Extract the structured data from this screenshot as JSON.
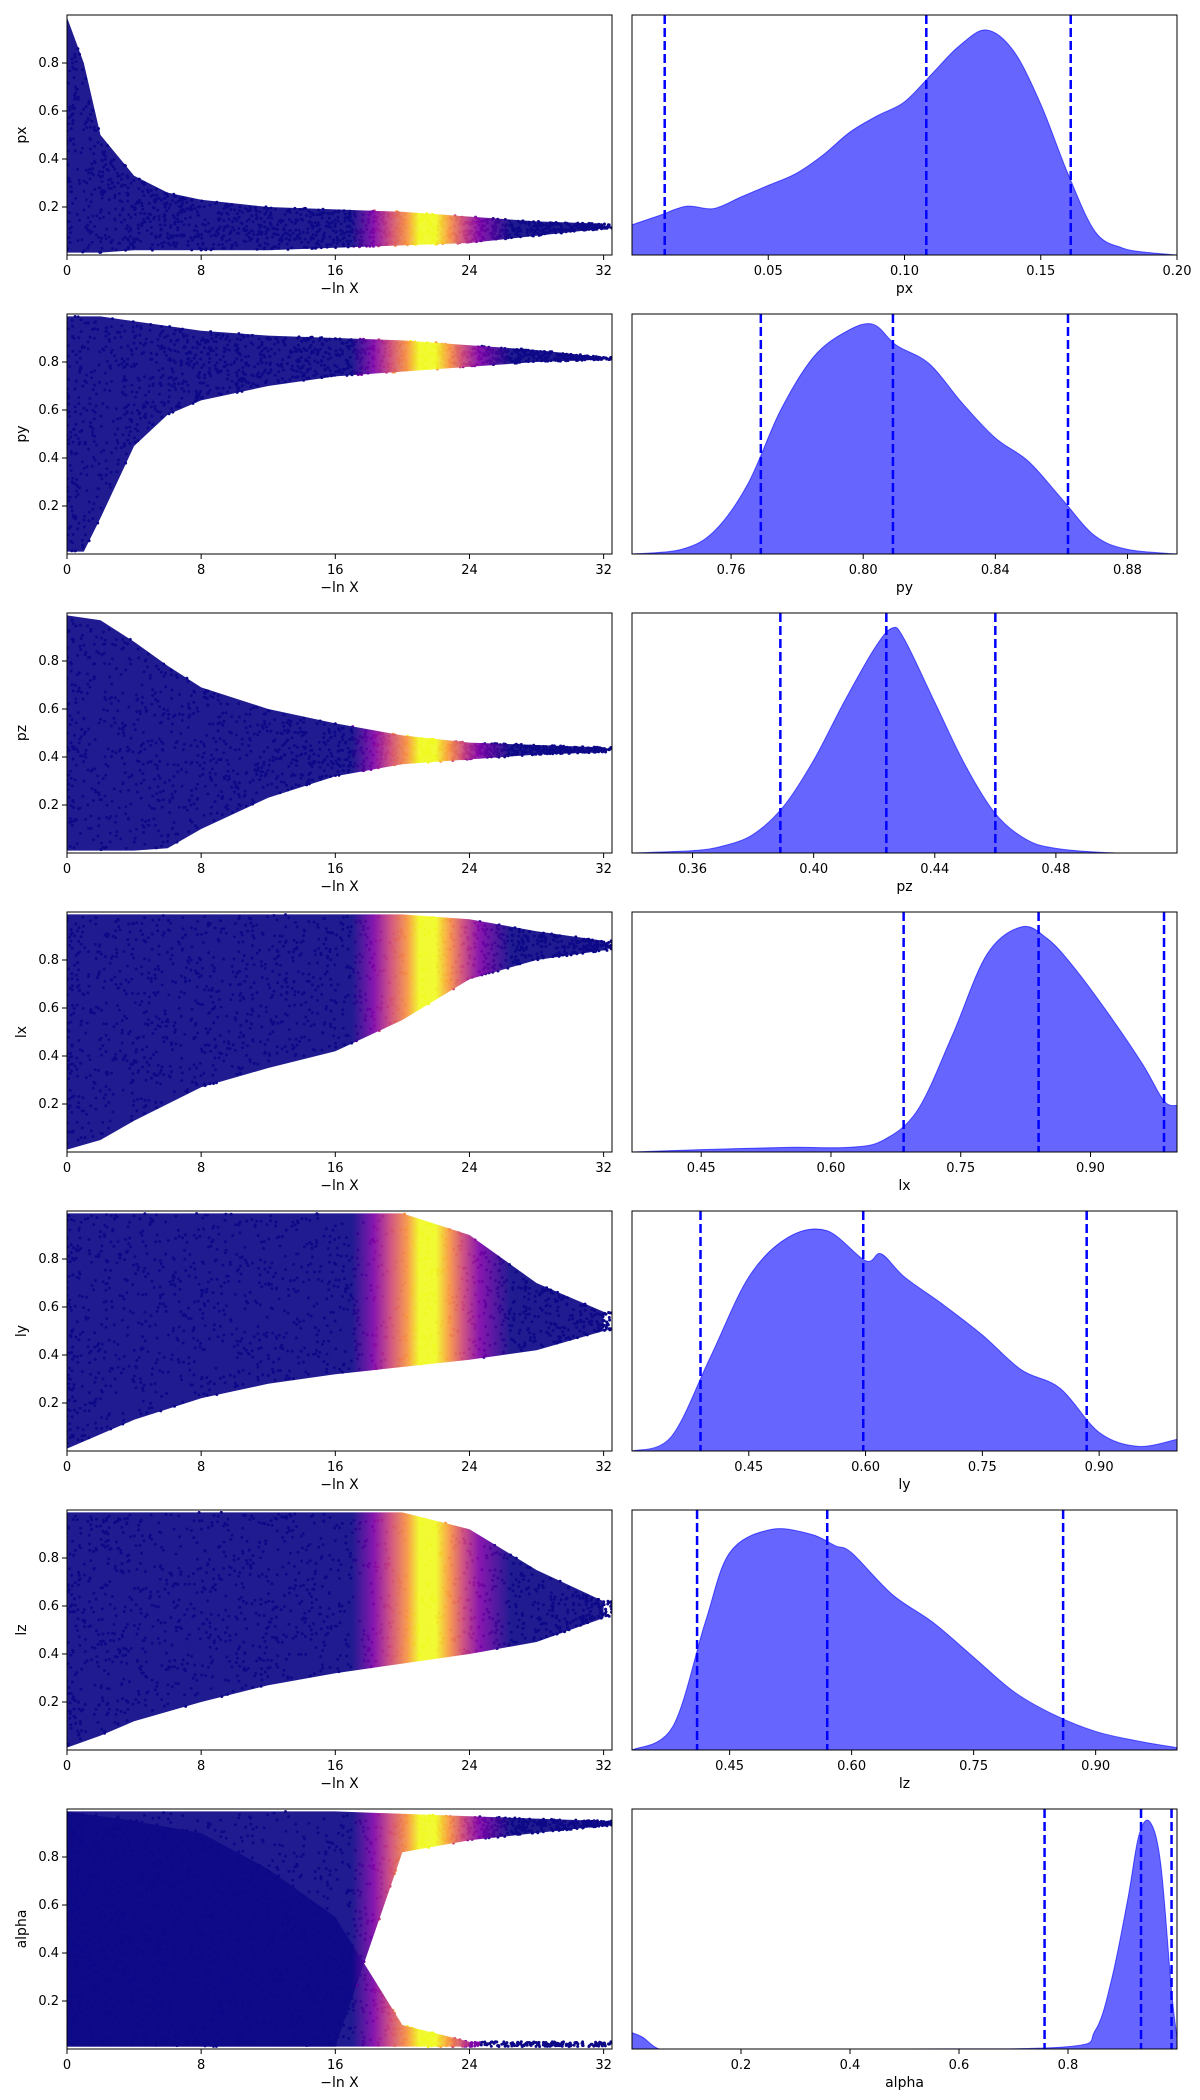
{
  "chart_data": [
    {
      "type": "scatter",
      "panel": "trace",
      "param": "px",
      "xlabel": "−ln X",
      "ylabel": "px",
      "xlim": [
        0,
        32.5
      ],
      "ylim": [
        0,
        1
      ],
      "xticks": [
        0,
        8,
        16,
        24,
        32
      ],
      "xtick_labels": [
        "0",
        "8",
        "16",
        "24",
        "32"
      ],
      "yticks": [
        0.2,
        0.4,
        0.6,
        0.8
      ],
      "ytick_labels": [
        "0.2",
        "0.4",
        "0.6",
        "0.8"
      ],
      "colormap": "plasma",
      "envelope": {
        "x": [
          0,
          1,
          2,
          4,
          6,
          8,
          12,
          16,
          20,
          24,
          28,
          32
        ],
        "upper": [
          0.99,
          0.8,
          0.5,
          0.33,
          0.26,
          0.23,
          0.2,
          0.19,
          0.18,
          0.16,
          0.14,
          0.13
        ],
        "lower": [
          0.01,
          0.01,
          0.01,
          0.02,
          0.02,
          0.02,
          0.02,
          0.03,
          0.04,
          0.05,
          0.08,
          0.11
        ]
      }
    },
    {
      "type": "area",
      "panel": "marginal",
      "param": "px",
      "xlabel": "px",
      "xlim": [
        0,
        0.2
      ],
      "xticks": [
        0.05,
        0.1,
        0.15,
        0.2
      ],
      "xtick_labels": [
        "0.05",
        "0.10",
        "0.15",
        "0.20"
      ],
      "quantile_lines": [
        0.012,
        0.108,
        0.161
      ],
      "color": "#0000ff",
      "density": {
        "x": [
          0,
          0.01,
          0.02,
          0.03,
          0.04,
          0.05,
          0.06,
          0.07,
          0.08,
          0.09,
          0.1,
          0.11,
          0.12,
          0.13,
          0.14,
          0.15,
          0.16,
          0.17,
          0.18,
          0.19,
          0.2
        ],
        "y": [
          0.13,
          0.17,
          0.21,
          0.2,
          0.25,
          0.3,
          0.35,
          0.43,
          0.53,
          0.6,
          0.66,
          0.78,
          0.9,
          0.97,
          0.88,
          0.65,
          0.35,
          0.1,
          0.03,
          0.01,
          0.0
        ]
      }
    },
    {
      "type": "scatter",
      "panel": "trace",
      "param": "py",
      "xlabel": "−ln X",
      "ylabel": "py",
      "xlim": [
        0,
        32.5
      ],
      "ylim": [
        0,
        1
      ],
      "xticks": [
        0,
        8,
        16,
        24,
        32
      ],
      "xtick_labels": [
        "0",
        "8",
        "16",
        "24",
        "32"
      ],
      "yticks": [
        0.2,
        0.4,
        0.6,
        0.8
      ],
      "ytick_labels": [
        "0.2",
        "0.4",
        "0.6",
        "0.8"
      ],
      "colormap": "plasma",
      "envelope": {
        "x": [
          0,
          1,
          2,
          4,
          6,
          8,
          12,
          16,
          20,
          24,
          28,
          32
        ],
        "upper": [
          0.99,
          0.99,
          0.99,
          0.97,
          0.95,
          0.93,
          0.91,
          0.9,
          0.89,
          0.87,
          0.85,
          0.82
        ],
        "lower": [
          0.01,
          0.01,
          0.15,
          0.45,
          0.58,
          0.64,
          0.7,
          0.74,
          0.76,
          0.78,
          0.8,
          0.81
        ]
      }
    },
    {
      "type": "area",
      "panel": "marginal",
      "param": "py",
      "xlabel": "py",
      "xlim": [
        0.73,
        0.895
      ],
      "xticks": [
        0.76,
        0.8,
        0.84,
        0.88
      ],
      "xtick_labels": [
        "0.76",
        "0.80",
        "0.84",
        "0.88"
      ],
      "quantile_lines": [
        0.769,
        0.809,
        0.862
      ],
      "color": "#0000ff",
      "density": {
        "x": [
          0.73,
          0.745,
          0.755,
          0.765,
          0.775,
          0.785,
          0.795,
          0.803,
          0.81,
          0.82,
          0.83,
          0.84,
          0.85,
          0.86,
          0.87,
          0.88,
          0.895
        ],
        "y": [
          0.0,
          0.02,
          0.1,
          0.3,
          0.62,
          0.85,
          0.96,
          0.99,
          0.9,
          0.82,
          0.65,
          0.5,
          0.4,
          0.24,
          0.08,
          0.02,
          0.0
        ]
      }
    },
    {
      "type": "scatter",
      "panel": "trace",
      "param": "pz",
      "xlabel": "−ln X",
      "ylabel": "pz",
      "xlim": [
        0,
        32.5
      ],
      "ylim": [
        0,
        1
      ],
      "xticks": [
        0,
        8,
        16,
        24,
        32
      ],
      "xtick_labels": [
        "0",
        "8",
        "16",
        "24",
        "32"
      ],
      "yticks": [
        0.2,
        0.4,
        0.6,
        0.8
      ],
      "ytick_labels": [
        "0.2",
        "0.4",
        "0.6",
        "0.8"
      ],
      "colormap": "plasma",
      "envelope": {
        "x": [
          0,
          2,
          4,
          6,
          8,
          12,
          16,
          20,
          24,
          28,
          32
        ],
        "upper": [
          0.99,
          0.97,
          0.88,
          0.78,
          0.69,
          0.6,
          0.54,
          0.49,
          0.46,
          0.45,
          0.44
        ],
        "lower": [
          0.01,
          0.01,
          0.01,
          0.02,
          0.1,
          0.23,
          0.32,
          0.37,
          0.39,
          0.41,
          0.42
        ]
      }
    },
    {
      "type": "area",
      "panel": "marginal",
      "param": "pz",
      "xlabel": "pz",
      "xlim": [
        0.34,
        0.52
      ],
      "xticks": [
        0.36,
        0.4,
        0.44,
        0.48
      ],
      "xtick_labels": [
        "0.36",
        "0.40",
        "0.44",
        "0.48"
      ],
      "quantile_lines": [
        0.389,
        0.424,
        0.46
      ],
      "color": "#0000ff",
      "density": {
        "x": [
          0.34,
          0.36,
          0.37,
          0.38,
          0.39,
          0.4,
          0.41,
          0.42,
          0.426,
          0.43,
          0.44,
          0.45,
          0.46,
          0.47,
          0.48,
          0.5,
          0.52
        ],
        "y": [
          0.0,
          0.01,
          0.03,
          0.08,
          0.2,
          0.4,
          0.65,
          0.88,
          0.97,
          0.92,
          0.65,
          0.38,
          0.17,
          0.06,
          0.02,
          0.0,
          0.0
        ]
      }
    },
    {
      "type": "scatter",
      "panel": "trace",
      "param": "lx",
      "xlabel": "−ln X",
      "ylabel": "lx",
      "xlim": [
        0,
        32.5
      ],
      "ylim": [
        0,
        1
      ],
      "xticks": [
        0,
        8,
        16,
        24,
        32
      ],
      "xtick_labels": [
        "0",
        "8",
        "16",
        "24",
        "32"
      ],
      "yticks": [
        0.2,
        0.4,
        0.6,
        0.8
      ],
      "ytick_labels": [
        "0.2",
        "0.4",
        "0.6",
        "0.8"
      ],
      "colormap": "plasma",
      "envelope": {
        "x": [
          0,
          2,
          4,
          6,
          8,
          12,
          16,
          20,
          24,
          28,
          32
        ],
        "upper": [
          0.99,
          0.99,
          0.99,
          0.99,
          0.99,
          0.99,
          0.99,
          0.99,
          0.97,
          0.92,
          0.88
        ],
        "lower": [
          0.01,
          0.05,
          0.13,
          0.2,
          0.27,
          0.35,
          0.42,
          0.55,
          0.72,
          0.8,
          0.84
        ]
      }
    },
    {
      "type": "area",
      "panel": "marginal",
      "param": "lx",
      "xlabel": "lx",
      "xlim": [
        0.37,
        1.0
      ],
      "xticks": [
        0.45,
        0.6,
        0.75,
        0.9
      ],
      "xtick_labels": [
        "0.45",
        "0.60",
        "0.75",
        "0.90"
      ],
      "quantile_lines": [
        0.684,
        0.84,
        0.985
      ],
      "color": "#0000ff",
      "density": {
        "x": [
          0.37,
          0.45,
          0.55,
          0.62,
          0.66,
          0.7,
          0.74,
          0.78,
          0.82,
          0.85,
          0.88,
          0.92,
          0.96,
          0.985,
          1.0
        ],
        "y": [
          0.0,
          0.01,
          0.02,
          0.02,
          0.05,
          0.18,
          0.5,
          0.85,
          0.97,
          0.92,
          0.8,
          0.6,
          0.38,
          0.22,
          0.2
        ]
      }
    },
    {
      "type": "scatter",
      "panel": "trace",
      "param": "ly",
      "xlabel": "−ln X",
      "ylabel": "ly",
      "xlim": [
        0,
        32.5
      ],
      "ylim": [
        0,
        1
      ],
      "xticks": [
        0,
        8,
        16,
        24,
        32
      ],
      "xtick_labels": [
        "0",
        "8",
        "16",
        "24",
        "32"
      ],
      "yticks": [
        0.2,
        0.4,
        0.6,
        0.8
      ],
      "ytick_labels": [
        "0.2",
        "0.4",
        "0.6",
        "0.8"
      ],
      "colormap": "plasma",
      "envelope": {
        "x": [
          0,
          2,
          4,
          8,
          12,
          16,
          20,
          24,
          28,
          32
        ],
        "upper": [
          0.99,
          0.99,
          0.99,
          0.99,
          0.99,
          0.99,
          0.99,
          0.9,
          0.7,
          0.58
        ],
        "lower": [
          0.01,
          0.07,
          0.13,
          0.22,
          0.28,
          0.32,
          0.35,
          0.38,
          0.42,
          0.5
        ]
      }
    },
    {
      "type": "area",
      "panel": "marginal",
      "param": "ly",
      "xlabel": "ly",
      "xlim": [
        0.3,
        1.0
      ],
      "xticks": [
        0.45,
        0.6,
        0.75,
        0.9
      ],
      "xtick_labels": [
        "0.45",
        "0.60",
        "0.75",
        "0.90"
      ],
      "quantile_lines": [
        0.388,
        0.597,
        0.884
      ],
      "color": "#0000ff",
      "density": {
        "x": [
          0.3,
          0.35,
          0.4,
          0.45,
          0.5,
          0.55,
          0.6,
          0.62,
          0.65,
          0.7,
          0.75,
          0.8,
          0.85,
          0.9,
          0.95,
          1.0
        ],
        "y": [
          0.0,
          0.06,
          0.4,
          0.75,
          0.92,
          0.95,
          0.82,
          0.85,
          0.75,
          0.63,
          0.5,
          0.35,
          0.27,
          0.08,
          0.02,
          0.05
        ]
      }
    },
    {
      "type": "scatter",
      "panel": "trace",
      "param": "lz",
      "xlabel": "−ln X",
      "ylabel": "lz",
      "xlim": [
        0,
        32.5
      ],
      "ylim": [
        0,
        1
      ],
      "xticks": [
        0,
        8,
        16,
        24,
        32
      ],
      "xtick_labels": [
        "0",
        "8",
        "16",
        "24",
        "32"
      ],
      "yticks": [
        0.2,
        0.4,
        0.6,
        0.8
      ],
      "ytick_labels": [
        "0.2",
        "0.4",
        "0.6",
        "0.8"
      ],
      "colormap": "plasma",
      "envelope": {
        "x": [
          0,
          2,
          4,
          8,
          12,
          16,
          20,
          24,
          28,
          32
        ],
        "upper": [
          0.99,
          0.99,
          0.99,
          0.99,
          0.99,
          0.99,
          0.99,
          0.92,
          0.75,
          0.62
        ],
        "lower": [
          0.01,
          0.06,
          0.12,
          0.2,
          0.27,
          0.32,
          0.36,
          0.4,
          0.45,
          0.55
        ]
      }
    },
    {
      "type": "area",
      "panel": "marginal",
      "param": "lz",
      "xlabel": "lz",
      "xlim": [
        0.33,
        1.0
      ],
      "xticks": [
        0.45,
        0.6,
        0.75,
        0.9
      ],
      "xtick_labels": [
        "0.45",
        "0.60",
        "0.75",
        "0.90"
      ],
      "quantile_lines": [
        0.41,
        0.57,
        0.86
      ],
      "color": "#0000ff",
      "density": {
        "x": [
          0.33,
          0.38,
          0.42,
          0.45,
          0.5,
          0.55,
          0.58,
          0.6,
          0.65,
          0.7,
          0.75,
          0.8,
          0.85,
          0.9,
          0.95,
          1.0
        ],
        "y": [
          0.0,
          0.1,
          0.55,
          0.85,
          0.95,
          0.93,
          0.88,
          0.85,
          0.67,
          0.55,
          0.4,
          0.25,
          0.15,
          0.08,
          0.04,
          0.01
        ]
      }
    },
    {
      "type": "scatter",
      "panel": "trace",
      "param": "alpha",
      "xlabel": "−ln X",
      "ylabel": "alpha",
      "xlim": [
        0,
        32.5
      ],
      "ylim": [
        0,
        1
      ],
      "xticks": [
        0,
        8,
        16,
        24,
        32
      ],
      "xtick_labels": [
        "0",
        "8",
        "16",
        "24",
        "32"
      ],
      "yticks": [
        0.2,
        0.4,
        0.6,
        0.8
      ],
      "ytick_labels": [
        "0.2",
        "0.4",
        "0.6",
        "0.8"
      ],
      "colormap": "plasma",
      "envelope": {
        "x": [
          0,
          2,
          4,
          8,
          12,
          16,
          20,
          24,
          28,
          32
        ],
        "upper": [
          0.99,
          0.99,
          0.99,
          0.99,
          0.99,
          0.99,
          0.98,
          0.97,
          0.96,
          0.95
        ],
        "lower": [
          0.01,
          0.01,
          0.01,
          0.01,
          0.01,
          0.01,
          0.82,
          0.87,
          0.9,
          0.93
        ]
      },
      "lower_branch": {
        "x": [
          0,
          4,
          8,
          12,
          16,
          20,
          24
        ],
        "upper": [
          0.99,
          0.95,
          0.9,
          0.75,
          0.55,
          0.1,
          0.03
        ],
        "lower": [
          0.01,
          0.01,
          0.01,
          0.01,
          0.01,
          0.01,
          0.01
        ]
      }
    },
    {
      "type": "area",
      "panel": "marginal",
      "param": "alpha",
      "xlabel": "alpha",
      "xlim": [
        0.0,
        1.0
      ],
      "xticks": [
        0.2,
        0.4,
        0.6,
        0.8
      ],
      "xtick_labels": [
        "0.2",
        "0.4",
        "0.6",
        "0.8"
      ],
      "quantile_lines": [
        0.757,
        0.934,
        0.99
      ],
      "color": "#0000ff",
      "density": {
        "x": [
          0.0,
          0.02,
          0.05,
          0.1,
          0.5,
          0.8,
          0.85,
          0.88,
          0.91,
          0.93,
          0.95,
          0.97,
          0.99,
          1.0
        ],
        "y": [
          0.07,
          0.05,
          0.0,
          0.0,
          0.0,
          0.01,
          0.08,
          0.3,
          0.65,
          0.92,
          0.98,
          0.8,
          0.25,
          0.05
        ]
      }
    }
  ]
}
